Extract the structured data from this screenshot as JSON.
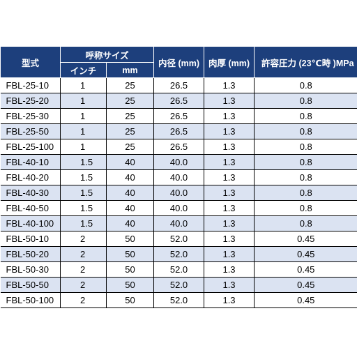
{
  "header": {
    "model": "型式",
    "nominal_size": "呼称サイズ",
    "inch": "インチ",
    "mm": "mm",
    "inner_diameter": "内径 (mm)",
    "wall_thickness": "肉厚 (mm)",
    "allowable_pressure": "許容圧力 (23℃時 )MPa"
  },
  "rows": [
    {
      "model": "FBL-25-10",
      "inch": "1",
      "mm": "25",
      "id": "26.5",
      "wall": "1.3",
      "pressure": "0.8"
    },
    {
      "model": "FBL-25-20",
      "inch": "1",
      "mm": "25",
      "id": "26.5",
      "wall": "1.3",
      "pressure": "0.8"
    },
    {
      "model": "FBL-25-30",
      "inch": "1",
      "mm": "25",
      "id": "26.5",
      "wall": "1.3",
      "pressure": "0.8"
    },
    {
      "model": "FBL-25-50",
      "inch": "1",
      "mm": "25",
      "id": "26.5",
      "wall": "1.3",
      "pressure": "0.8"
    },
    {
      "model": "FBL-25-100",
      "inch": "1",
      "mm": "25",
      "id": "26.5",
      "wall": "1.3",
      "pressure": "0.8"
    },
    {
      "model": "FBL-40-10",
      "inch": "1.5",
      "mm": "40",
      "id": "40.0",
      "wall": "1.3",
      "pressure": "0.8"
    },
    {
      "model": "FBL-40-20",
      "inch": "1.5",
      "mm": "40",
      "id": "40.0",
      "wall": "1.3",
      "pressure": "0.8"
    },
    {
      "model": "FBL-40-30",
      "inch": "1.5",
      "mm": "40",
      "id": "40.0",
      "wall": "1.3",
      "pressure": "0.8"
    },
    {
      "model": "FBL-40-50",
      "inch": "1.5",
      "mm": "40",
      "id": "40.0",
      "wall": "1.3",
      "pressure": "0.8"
    },
    {
      "model": "FBL-40-100",
      "inch": "1.5",
      "mm": "40",
      "id": "40.0",
      "wall": "1.3",
      "pressure": "0.8"
    },
    {
      "model": "FBL-50-10",
      "inch": "2",
      "mm": "50",
      "id": "52.0",
      "wall": "1.3",
      "pressure": "0.45"
    },
    {
      "model": "FBL-50-20",
      "inch": "2",
      "mm": "50",
      "id": "52.0",
      "wall": "1.3",
      "pressure": "0.45"
    },
    {
      "model": "FBL-50-30",
      "inch": "2",
      "mm": "50",
      "id": "52.0",
      "wall": "1.3",
      "pressure": "0.45"
    },
    {
      "model": "FBL-50-50",
      "inch": "2",
      "mm": "50",
      "id": "52.0",
      "wall": "1.3",
      "pressure": "0.45"
    },
    {
      "model": "FBL-50-100",
      "inch": "2",
      "mm": "50",
      "id": "52.0",
      "wall": "1.3",
      "pressure": "0.45"
    }
  ],
  "colors": {
    "header_bg": "#1d3f7c",
    "header_text": "#ffffff",
    "stripe": "#dbe3f2"
  }
}
